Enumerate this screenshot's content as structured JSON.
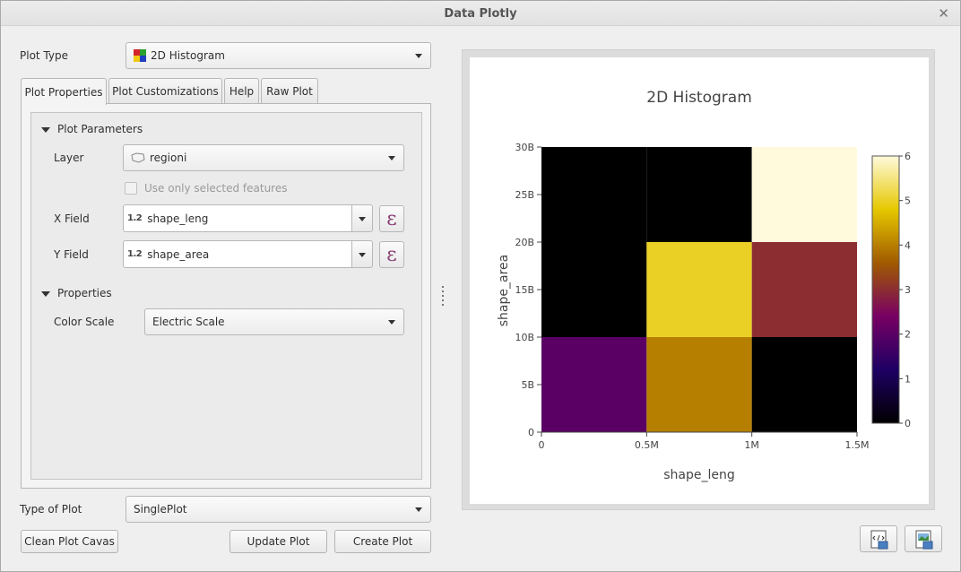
{
  "window": {
    "title": "Data Plotly"
  },
  "plot_type": {
    "label": "Plot Type",
    "value": "2D Histogram"
  },
  "tabs": [
    {
      "label": "Plot Properties"
    },
    {
      "label": "Plot Customizations"
    },
    {
      "label": "Help"
    },
    {
      "label": "Raw Plot"
    }
  ],
  "plot_parameters": {
    "section_label": "Plot Parameters",
    "layer_label": "Layer",
    "layer_value": "regioni",
    "selected_only_label": "Use only selected features",
    "x_field_label": "X Field",
    "x_field_type": "1.2",
    "x_field_value": "shape_leng",
    "y_field_label": "Y Field",
    "y_field_type": "1.2",
    "y_field_value": "shape_area",
    "expression_symbol": "ε"
  },
  "properties": {
    "section_label": "Properties",
    "color_scale_label": "Color Scale",
    "color_scale_value": "Electric Scale"
  },
  "type_of_plot": {
    "label": "Type of Plot",
    "value": "SinglePlot"
  },
  "buttons": {
    "clean": "Clean Plot Cavas",
    "update": "Update Plot",
    "create": "Create Plot"
  },
  "icons": {
    "close": "close-icon",
    "plot_type": "histogram-2d-icon",
    "layer": "polygon-layer-icon",
    "save_html": "save-html-icon",
    "save_image": "save-image-icon"
  },
  "chart_data": {
    "type": "heatmap",
    "title": "2D Histogram",
    "xlabel": "shape_leng",
    "ylabel": "shape_area",
    "x_ticks": [
      "0",
      "0.5M",
      "1M",
      "1.5M"
    ],
    "y_ticks": [
      "0",
      "5B",
      "10B",
      "15B",
      "20B",
      "25B",
      "30B"
    ],
    "x_range": [
      0,
      1500000
    ],
    "y_range": [
      0,
      30000000000
    ],
    "x_bin_size": 500000,
    "y_bin_size": 10000000000,
    "z": [
      [
        2,
        4,
        0
      ],
      [
        0,
        5,
        3
      ],
      [
        0,
        0,
        6
      ]
    ],
    "colorscale": {
      "name": "Electric",
      "range": [
        0,
        6
      ],
      "ticks": [
        "0",
        "1",
        "2",
        "3",
        "4",
        "5",
        "6"
      ],
      "stops": [
        "#000000",
        "#1e0064",
        "#780064",
        "#a05a00",
        "#e6c800",
        "#fffadc"
      ]
    }
  }
}
